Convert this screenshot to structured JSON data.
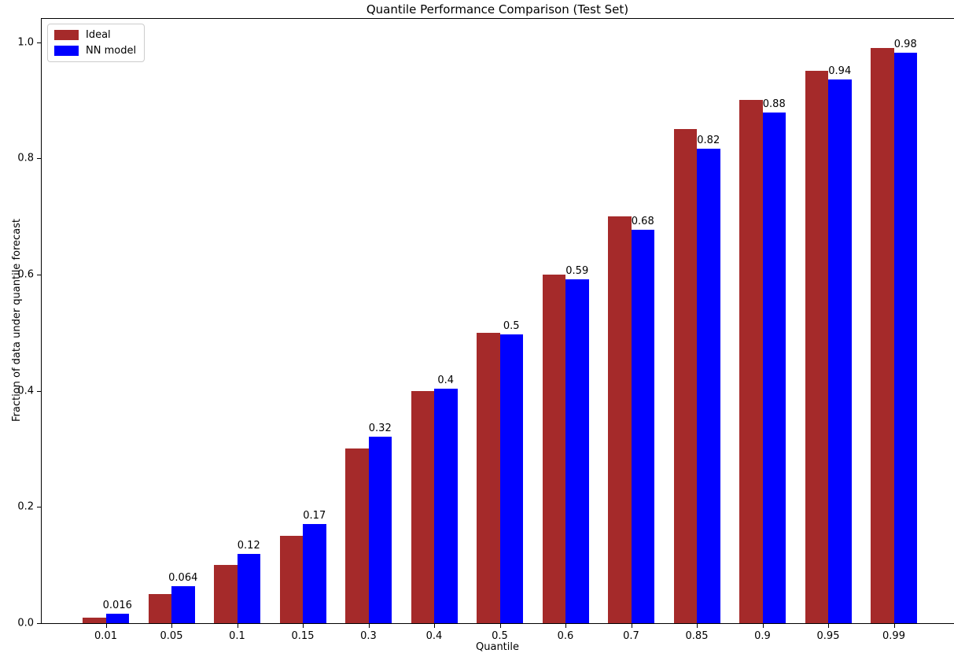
{
  "chart_data": {
    "type": "bar",
    "title": "Quantile Performance Comparison (Test Set)",
    "xlabel": "Quantile",
    "ylabel": "Fraction of data under quantile forecast",
    "categories": [
      "0.01",
      "0.05",
      "0.1",
      "0.15",
      "0.3",
      "0.4",
      "0.5",
      "0.6",
      "0.7",
      "0.85",
      "0.9",
      "0.95",
      "0.99"
    ],
    "series": [
      {
        "name": "Ideal",
        "color": "#A52A2A",
        "values": [
          0.01,
          0.05,
          0.1,
          0.15,
          0.3,
          0.4,
          0.5,
          0.6,
          0.7,
          0.85,
          0.9,
          0.95,
          0.99
        ]
      },
      {
        "name": "NN model",
        "color": "#0000FF",
        "values": [
          0.016,
          0.064,
          0.119,
          0.171,
          0.321,
          0.403,
          0.497,
          0.592,
          0.677,
          0.817,
          0.879,
          0.936,
          0.982
        ],
        "labels": [
          "0.016",
          "0.064",
          "0.12",
          "0.17",
          "0.32",
          "0.4",
          "0.5",
          "0.59",
          "0.68",
          "0.82",
          "0.88",
          "0.94",
          "0.98"
        ]
      }
    ],
    "ytick_labels": [
      "0.0",
      "0.2",
      "0.4",
      "0.6",
      "0.8",
      "1.0"
    ],
    "yticks": [
      0.0,
      0.2,
      0.4,
      0.6,
      0.8,
      1.0
    ],
    "ylim": [
      0,
      1.04
    ],
    "grid": false,
    "legend_position": "upper-left",
    "background": "#ffffff"
  }
}
